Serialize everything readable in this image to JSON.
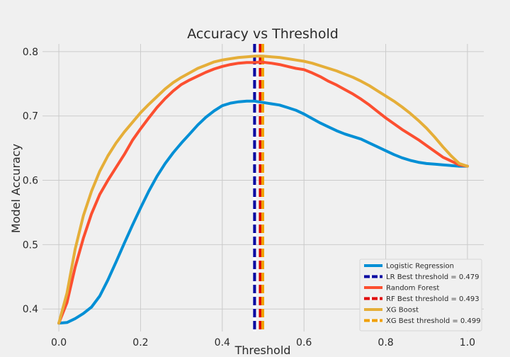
{
  "chart_data": {
    "type": "line",
    "title": "Accuracy vs Threshold",
    "xlabel": "Threshold",
    "ylabel": "Model Accuracy",
    "xlim": [
      -0.04,
      1.04
    ],
    "ylim": [
      0.365,
      0.812
    ],
    "xticks": [
      0.0,
      0.2,
      0.4,
      0.6,
      0.8,
      1.0
    ],
    "xtick_labels": [
      "0.0",
      "0.2",
      "0.4",
      "0.6",
      "0.8",
      "1.0"
    ],
    "yticks": [
      0.4,
      0.5,
      0.6,
      0.7,
      0.8
    ],
    "ytick_labels": [
      "0.4",
      "0.5",
      "0.6",
      "0.7",
      "0.8"
    ],
    "grid": true,
    "legend_position": "lower-right",
    "series": [
      {
        "name": "Logistic Regression",
        "color": "#008fd5",
        "x": [
          0.0,
          0.02,
          0.04,
          0.06,
          0.08,
          0.1,
          0.12,
          0.14,
          0.16,
          0.18,
          0.2,
          0.22,
          0.24,
          0.26,
          0.28,
          0.3,
          0.32,
          0.34,
          0.36,
          0.38,
          0.4,
          0.42,
          0.44,
          0.46,
          0.479,
          0.5,
          0.52,
          0.54,
          0.56,
          0.58,
          0.6,
          0.62,
          0.64,
          0.66,
          0.68,
          0.7,
          0.72,
          0.74,
          0.76,
          0.78,
          0.8,
          0.82,
          0.84,
          0.86,
          0.88,
          0.9,
          0.92,
          0.94,
          0.96,
          0.98,
          1.0
        ],
        "y": [
          0.378,
          0.379,
          0.385,
          0.393,
          0.403,
          0.42,
          0.445,
          0.473,
          0.502,
          0.53,
          0.557,
          0.583,
          0.606,
          0.626,
          0.643,
          0.658,
          0.672,
          0.686,
          0.698,
          0.708,
          0.716,
          0.72,
          0.722,
          0.723,
          0.723,
          0.721,
          0.719,
          0.717,
          0.713,
          0.709,
          0.703,
          0.696,
          0.689,
          0.683,
          0.677,
          0.672,
          0.668,
          0.664,
          0.658,
          0.652,
          0.646,
          0.64,
          0.635,
          0.631,
          0.628,
          0.626,
          0.625,
          0.624,
          0.623,
          0.622,
          0.622
        ]
      },
      {
        "name": "Random Forest",
        "color": "#fc4f30",
        "x": [
          0.0,
          0.02,
          0.04,
          0.06,
          0.08,
          0.1,
          0.12,
          0.14,
          0.16,
          0.18,
          0.2,
          0.22,
          0.24,
          0.26,
          0.28,
          0.3,
          0.32,
          0.34,
          0.36,
          0.38,
          0.4,
          0.42,
          0.44,
          0.46,
          0.48,
          0.493,
          0.52,
          0.54,
          0.56,
          0.58,
          0.6,
          0.62,
          0.64,
          0.66,
          0.68,
          0.7,
          0.72,
          0.74,
          0.76,
          0.78,
          0.8,
          0.82,
          0.84,
          0.86,
          0.88,
          0.9,
          0.92,
          0.94,
          0.96,
          0.98,
          1.0
        ],
        "y": [
          0.378,
          0.41,
          0.465,
          0.51,
          0.548,
          0.578,
          0.6,
          0.62,
          0.64,
          0.662,
          0.68,
          0.697,
          0.713,
          0.727,
          0.739,
          0.749,
          0.756,
          0.762,
          0.768,
          0.773,
          0.777,
          0.78,
          0.782,
          0.783,
          0.783,
          0.784,
          0.782,
          0.78,
          0.777,
          0.774,
          0.772,
          0.767,
          0.761,
          0.754,
          0.748,
          0.741,
          0.734,
          0.726,
          0.717,
          0.707,
          0.697,
          0.688,
          0.679,
          0.671,
          0.663,
          0.654,
          0.645,
          0.636,
          0.63,
          0.624,
          0.622
        ]
      },
      {
        "name": "XG Boost",
        "color": "#e5ae38",
        "x": [
          0.0,
          0.02,
          0.04,
          0.06,
          0.08,
          0.1,
          0.12,
          0.14,
          0.16,
          0.18,
          0.2,
          0.22,
          0.24,
          0.26,
          0.28,
          0.3,
          0.32,
          0.34,
          0.36,
          0.38,
          0.4,
          0.42,
          0.44,
          0.46,
          0.48,
          0.499,
          0.52,
          0.54,
          0.56,
          0.58,
          0.6,
          0.62,
          0.64,
          0.66,
          0.68,
          0.7,
          0.72,
          0.74,
          0.76,
          0.78,
          0.8,
          0.82,
          0.84,
          0.86,
          0.88,
          0.9,
          0.92,
          0.94,
          0.96,
          0.98,
          1.0
        ],
        "y": [
          0.378,
          0.425,
          0.493,
          0.545,
          0.583,
          0.614,
          0.638,
          0.658,
          0.675,
          0.69,
          0.705,
          0.718,
          0.73,
          0.742,
          0.752,
          0.76,
          0.767,
          0.774,
          0.779,
          0.784,
          0.787,
          0.789,
          0.791,
          0.792,
          0.793,
          0.793,
          0.792,
          0.791,
          0.789,
          0.787,
          0.785,
          0.782,
          0.778,
          0.774,
          0.77,
          0.765,
          0.76,
          0.754,
          0.747,
          0.739,
          0.731,
          0.723,
          0.714,
          0.704,
          0.693,
          0.681,
          0.667,
          0.652,
          0.638,
          0.626,
          0.622
        ]
      }
    ],
    "vlines": [
      {
        "name": "LR Best threshold = 0.479",
        "x": 0.479,
        "color": "#0000a0",
        "dash_color": "#ffffff"
      },
      {
        "name": "RF Best threshold = 0.493",
        "x": 0.493,
        "color": "#e00000",
        "dash_color": "#f0f0f0"
      },
      {
        "name": "XG Best threshold = 0.499",
        "x": 0.499,
        "color": "#f0a000",
        "dash_color": "#f0f0f0"
      }
    ],
    "legend": [
      {
        "label": "Logistic Regression",
        "kind": "solid",
        "color": "#008fd5"
      },
      {
        "label": "LR Best threshold = 0.479",
        "kind": "dashed",
        "color": "#0000a0"
      },
      {
        "label": "Random Forest",
        "kind": "solid",
        "color": "#fc4f30"
      },
      {
        "label": "RF Best threshold = 0.493",
        "kind": "dashed",
        "color": "#e00000"
      },
      {
        "label": "XG Boost",
        "kind": "solid",
        "color": "#e5ae38"
      },
      {
        "label": "XG Best threshold = 0.499",
        "kind": "dashed",
        "color": "#f0a000"
      }
    ]
  }
}
